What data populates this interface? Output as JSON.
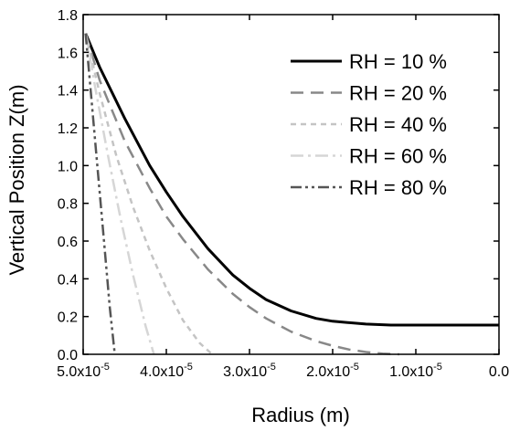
{
  "chart_data": {
    "type": "line",
    "title": "",
    "xlabel": "Radius (m)",
    "ylabel": "Vertical Position Z(m)",
    "xlim": [
      5e-05,
      0.0
    ],
    "ylim": [
      0.0,
      1.8
    ],
    "x_reversed": true,
    "grid": false,
    "legend_position": "top-right",
    "x_ticks": [
      {
        "value": 5e-05,
        "mantissa": "5.0x10",
        "exp": "-5"
      },
      {
        "value": 4e-05,
        "mantissa": "4.0x10",
        "exp": "-5"
      },
      {
        "value": 3e-05,
        "mantissa": "3.0x10",
        "exp": "-5"
      },
      {
        "value": 2e-05,
        "mantissa": "2.0x10",
        "exp": "-5"
      },
      {
        "value": 1e-05,
        "mantissa": "1.0x10",
        "exp": "-5"
      },
      {
        "value": 0.0,
        "mantissa": "0.0",
        "exp": ""
      }
    ],
    "y_ticks": [
      {
        "value": 0.0,
        "label": "0.0"
      },
      {
        "value": 0.2,
        "label": "0.2"
      },
      {
        "value": 0.4,
        "label": "0.4"
      },
      {
        "value": 0.6,
        "label": "0.6"
      },
      {
        "value": 0.8,
        "label": "0.8"
      },
      {
        "value": 1.0,
        "label": "1.0"
      },
      {
        "value": 1.2,
        "label": "1.2"
      },
      {
        "value": 1.4,
        "label": "1.4"
      },
      {
        "value": 1.6,
        "label": "1.6"
      },
      {
        "value": 1.8,
        "label": "1.8"
      }
    ],
    "series": [
      {
        "name": "RH = 10 %",
        "color": "#000000",
        "dash": "solid",
        "x": [
          4.97e-05,
          4.8e-05,
          4.5e-05,
          4.2e-05,
          4e-05,
          3.8e-05,
          3.5e-05,
          3.2e-05,
          3e-05,
          2.8e-05,
          2.5e-05,
          2.2e-05,
          2e-05,
          1.6e-05,
          1.3e-05,
          1e-05,
          5e-06,
          0.0
        ],
        "y": [
          1.7,
          1.52,
          1.25,
          1.0,
          0.86,
          0.73,
          0.56,
          0.42,
          0.35,
          0.29,
          0.23,
          0.19,
          0.175,
          0.16,
          0.155,
          0.155,
          0.155,
          0.155
        ]
      },
      {
        "name": "RH = 20 %",
        "color": "#888888",
        "dash": "long-dash",
        "x": [
          4.97e-05,
          4.8e-05,
          4.5e-05,
          4.2e-05,
          4e-05,
          3.8e-05,
          3.5e-05,
          3.2e-05,
          3e-05,
          2.8e-05,
          2.5e-05,
          2.2e-05,
          2e-05,
          1.8e-05,
          1.6e-05,
          1.4e-05,
          1.2e-05
        ],
        "y": [
          1.7,
          1.45,
          1.13,
          0.88,
          0.73,
          0.61,
          0.45,
          0.32,
          0.25,
          0.19,
          0.12,
          0.07,
          0.045,
          0.025,
          0.012,
          0.004,
          0.0
        ]
      },
      {
        "name": "RH = 40 %",
        "color": "#c4c4c4",
        "dash": "short-dash",
        "x": [
          4.97e-05,
          4.8e-05,
          4.6e-05,
          4.4e-05,
          4.2e-05,
          4e-05,
          3.8e-05,
          3.6e-05,
          3.45e-05
        ],
        "y": [
          1.7,
          1.38,
          1.05,
          0.78,
          0.55,
          0.35,
          0.18,
          0.06,
          0.0
        ]
      },
      {
        "name": "RH = 60 %",
        "color": "#d6d6d6",
        "dash": "dash-dot",
        "x": [
          4.97e-05,
          4.85e-05,
          4.7e-05,
          4.55e-05,
          4.4e-05,
          4.25e-05,
          4.15e-05
        ],
        "y": [
          1.7,
          1.4,
          1.05,
          0.72,
          0.42,
          0.15,
          0.0
        ]
      },
      {
        "name": "RH = 80 %",
        "color": "#555555",
        "dash": "dash-dot-dot",
        "x": [
          4.97e-05,
          4.9e-05,
          4.82e-05,
          4.75e-05,
          4.68e-05,
          4.62e-05
        ],
        "y": [
          1.7,
          1.35,
          0.95,
          0.6,
          0.25,
          0.0
        ]
      }
    ]
  }
}
